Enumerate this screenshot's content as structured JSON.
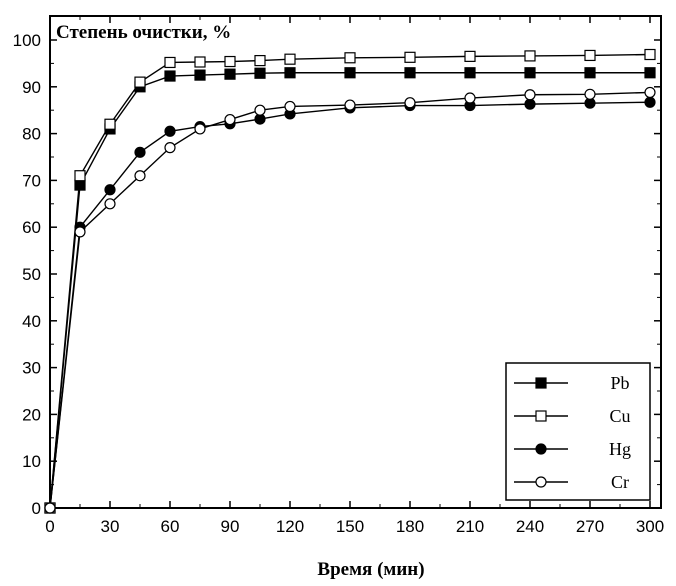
{
  "chart_data": {
    "type": "line",
    "title": "",
    "ylabel": "Степень очистки, %",
    "xlabel": "Время (мин)",
    "xlim": [
      0,
      300
    ],
    "ylim": [
      0,
      105
    ],
    "xticks": [
      0,
      30,
      60,
      90,
      120,
      150,
      180,
      210,
      240,
      270,
      300
    ],
    "yticks": [
      0,
      10,
      20,
      30,
      40,
      50,
      60,
      70,
      80,
      90,
      100
    ],
    "grid": false,
    "legend_position": "bottom-right",
    "series": [
      {
        "name": "Pb",
        "marker": "square-filled",
        "x": [
          0,
          15,
          30,
          45,
          60,
          75,
          90,
          105,
          120,
          150,
          180,
          210,
          240,
          270,
          300
        ],
        "y": [
          0,
          69,
          81,
          90,
          92.3,
          92.5,
          92.7,
          92.9,
          93,
          93,
          93,
          93,
          93,
          93,
          93
        ]
      },
      {
        "name": "Cu",
        "marker": "square-open",
        "x": [
          0,
          15,
          30,
          45,
          60,
          75,
          90,
          105,
          120,
          150,
          180,
          210,
          240,
          270,
          300
        ],
        "y": [
          0,
          71,
          82,
          91,
          95.2,
          95.3,
          95.4,
          95.6,
          95.9,
          96.2,
          96.3,
          96.5,
          96.6,
          96.7,
          96.9
        ]
      },
      {
        "name": "Hg",
        "marker": "circle-filled",
        "x": [
          0,
          15,
          30,
          45,
          60,
          75,
          90,
          105,
          120,
          150,
          180,
          210,
          240,
          270,
          300
        ],
        "y": [
          0,
          60,
          68,
          76,
          80.5,
          81.5,
          82.1,
          83.1,
          84.2,
          85.5,
          86,
          86,
          86.3,
          86.5,
          86.7
        ]
      },
      {
        "name": "Cr",
        "marker": "circle-open",
        "x": [
          0,
          15,
          30,
          45,
          60,
          75,
          90,
          105,
          120,
          150,
          180,
          210,
          240,
          270,
          300
        ],
        "y": [
          0,
          59,
          65,
          71,
          77,
          81,
          83,
          85,
          85.8,
          86.1,
          86.6,
          87.6,
          88.3,
          88.4,
          88.8
        ]
      }
    ]
  }
}
